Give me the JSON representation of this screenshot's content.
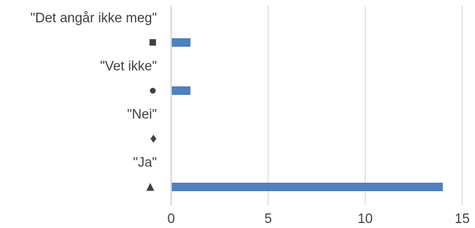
{
  "chart_data": {
    "type": "bar",
    "orientation": "horizontal",
    "categories": [
      "\"Det angår ikke meg\"",
      "■",
      "\"Vet ikke\"",
      "●",
      "\"Nei\"",
      "♦",
      "\"Ja\"",
      "▲"
    ],
    "values": [
      0,
      1,
      0,
      1,
      0,
      0,
      0,
      14
    ],
    "xlim": [
      0,
      15
    ],
    "xticks": [
      0,
      5,
      10,
      15
    ],
    "grid": "vertical",
    "legend": "none",
    "colors": {
      "bar": "#4f81bd",
      "grid": "#d9d9d9",
      "axis": "#bfbfbf",
      "text": "#404040"
    }
  }
}
